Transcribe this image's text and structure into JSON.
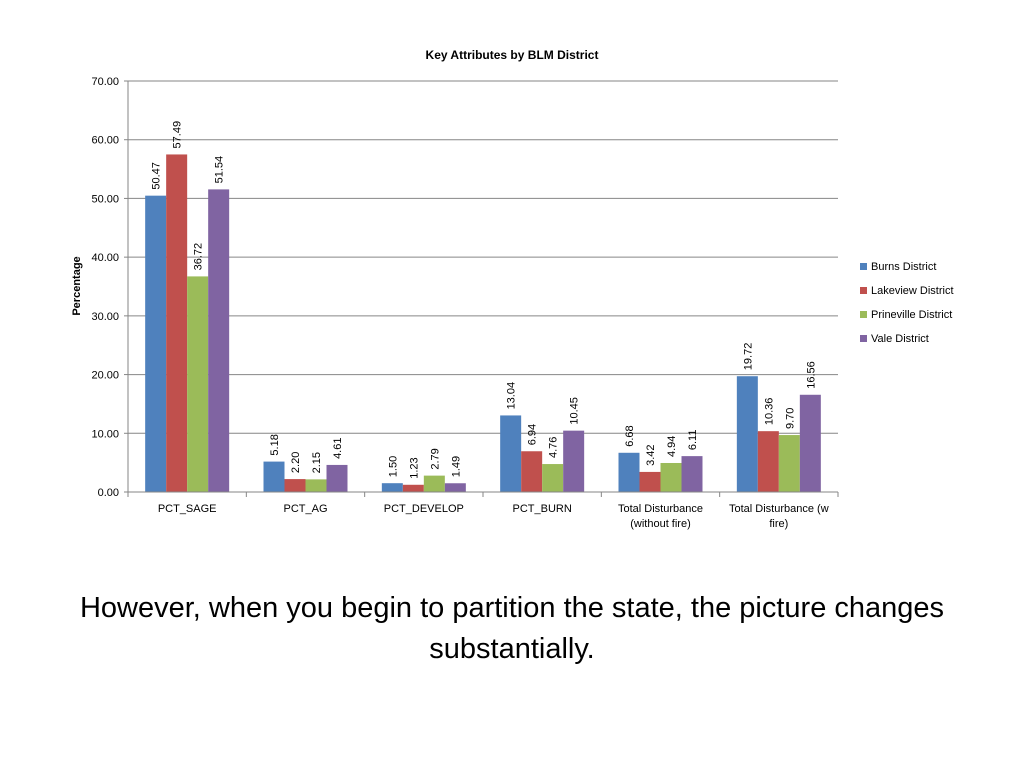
{
  "chart_data": {
    "type": "bar",
    "title": "Key Attributes  by BLM District",
    "ylabel": "Percentage",
    "xlabel": "",
    "ylim": [
      0,
      70
    ],
    "yticks": [
      "0.00",
      "10.00",
      "20.00",
      "30.00",
      "40.00",
      "50.00",
      "60.00",
      "70.00"
    ],
    "grid": true,
    "legend_position": "right",
    "categories": [
      [
        "PCT_SAGE"
      ],
      [
        "PCT_AG"
      ],
      [
        "PCT_DEVELOP"
      ],
      [
        "PCT_BURN"
      ],
      [
        "Total Disturbance",
        "(without fire)"
      ],
      [
        "Total Disturbance (w",
        "fire)"
      ]
    ],
    "series": [
      {
        "name": "Burns District",
        "color": "#4f81bd",
        "values": [
          50.47,
          5.18,
          1.5,
          13.04,
          6.68,
          19.72
        ],
        "labels": [
          "50.47",
          "5.18",
          "1.50",
          "13.04",
          "6.68",
          "19.72"
        ]
      },
      {
        "name": "Lakeview District",
        "color": "#c0504d",
        "values": [
          57.49,
          2.2,
          1.23,
          6.94,
          3.42,
          10.36
        ],
        "labels": [
          "57.49",
          "2.20",
          "1.23",
          "6.94",
          "3.42",
          "10.36"
        ]
      },
      {
        "name": "Prineville District",
        "color": "#9bbb59",
        "values": [
          36.72,
          2.15,
          2.79,
          4.76,
          4.94,
          9.7
        ],
        "labels": [
          "36.72",
          "2.15",
          "2.79",
          "4.76",
          "4.94",
          "9.70"
        ]
      },
      {
        "name": "Vale District",
        "color": "#8064a2",
        "values": [
          51.54,
          4.61,
          1.49,
          10.45,
          6.11,
          16.56
        ],
        "labels": [
          "51.54",
          "4.61",
          "1.49",
          "10.45",
          "6.11",
          "16.56"
        ]
      }
    ]
  },
  "caption": "However, when you begin to partition the state, the picture changes substantially."
}
